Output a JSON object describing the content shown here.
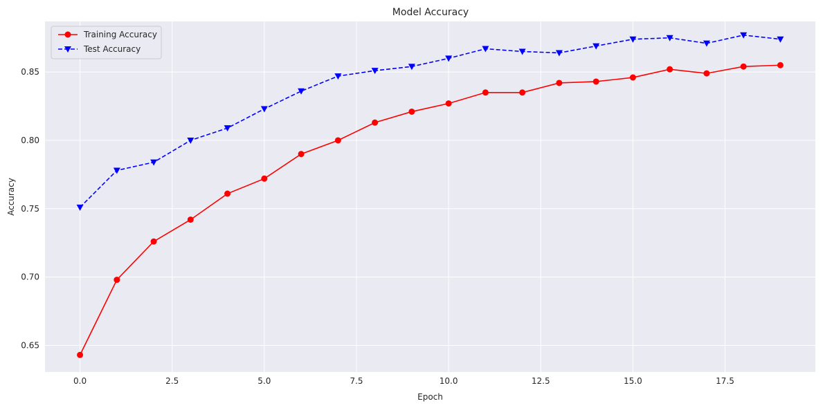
{
  "chart_data": {
    "type": "line",
    "title": "Model Accuracy",
    "xlabel": "Epoch",
    "ylabel": "Accuracy",
    "xlim": [
      -0.95,
      19.95
    ],
    "ylim": [
      0.6305,
      0.887
    ],
    "x_ticks": [
      0.0,
      2.5,
      5.0,
      7.5,
      10.0,
      12.5,
      15.0,
      17.5
    ],
    "x_tick_labels": [
      "0.0",
      "2.5",
      "5.0",
      "7.5",
      "10.0",
      "12.5",
      "15.0",
      "17.5"
    ],
    "y_ticks": [
      0.65,
      0.7,
      0.75,
      0.8,
      0.85
    ],
    "y_tick_labels": [
      "0.65",
      "0.70",
      "0.75",
      "0.80",
      "0.85"
    ],
    "grid": true,
    "legend_position": "top-left",
    "background": "#eaeaf2",
    "x": [
      0,
      1,
      2,
      3,
      4,
      5,
      6,
      7,
      8,
      9,
      10,
      11,
      12,
      13,
      14,
      15,
      16,
      17,
      18,
      19
    ],
    "series": [
      {
        "name": "Training Accuracy",
        "color": "#ff0000",
        "marker": "circle",
        "line_style": "solid",
        "values": [
          0.643,
          0.698,
          0.726,
          0.742,
          0.761,
          0.772,
          0.79,
          0.8,
          0.813,
          0.821,
          0.827,
          0.835,
          0.835,
          0.842,
          0.843,
          0.846,
          0.852,
          0.849,
          0.854,
          0.855
        ]
      },
      {
        "name": "Test Accuracy",
        "color": "#0000ff",
        "marker": "triangle-down",
        "line_style": "dashed",
        "values": [
          0.751,
          0.778,
          0.784,
          0.8,
          0.809,
          0.823,
          0.836,
          0.847,
          0.851,
          0.854,
          0.86,
          0.867,
          0.865,
          0.864,
          0.869,
          0.874,
          0.875,
          0.871,
          0.877,
          0.874
        ]
      }
    ]
  }
}
